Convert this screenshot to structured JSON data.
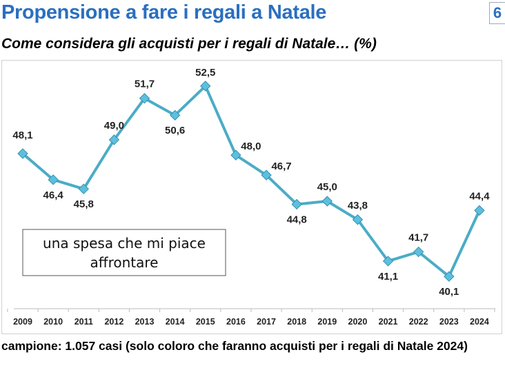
{
  "header": {
    "title": "Propensione a fare i regali a Natale",
    "page_number": "6"
  },
  "subtitle": "Come considera gli acquisti per i regali di Natale… (%)",
  "footer": "campione: 1.057 casi (solo coloro che faranno acquisti per i regali di Natale 2024)",
  "chart_data": {
    "type": "line",
    "categories": [
      "2009",
      "2010",
      "2011",
      "2012",
      "2013",
      "2014",
      "2015",
      "2016",
      "2017",
      "2018",
      "2019",
      "2020",
      "2021",
      "2022",
      "2023",
      "2024"
    ],
    "series": [
      {
        "name": "una spesa che mi piace affrontare",
        "values": [
          48.1,
          46.4,
          45.8,
          49.0,
          51.7,
          50.6,
          52.5,
          48.0,
          46.7,
          44.8,
          45.0,
          43.8,
          41.1,
          41.7,
          40.1,
          44.4
        ],
        "color": "#4bacc6"
      }
    ],
    "data_labels": [
      "48,1",
      "46,4",
      "45,8",
      "49,0",
      "51,7",
      "50,6",
      "52,5",
      "48,0",
      "46,7",
      "44,8",
      "45,0",
      "43,8",
      "41,1",
      "41,7",
      "40,1",
      "44,4"
    ],
    "legend": {
      "lines": [
        "una spesa che mi piace",
        "affrontare"
      ],
      "placement": "bottom-left"
    },
    "ylim": [
      38,
      54.2
    ],
    "grid": false,
    "y_axis_visible": false
  }
}
